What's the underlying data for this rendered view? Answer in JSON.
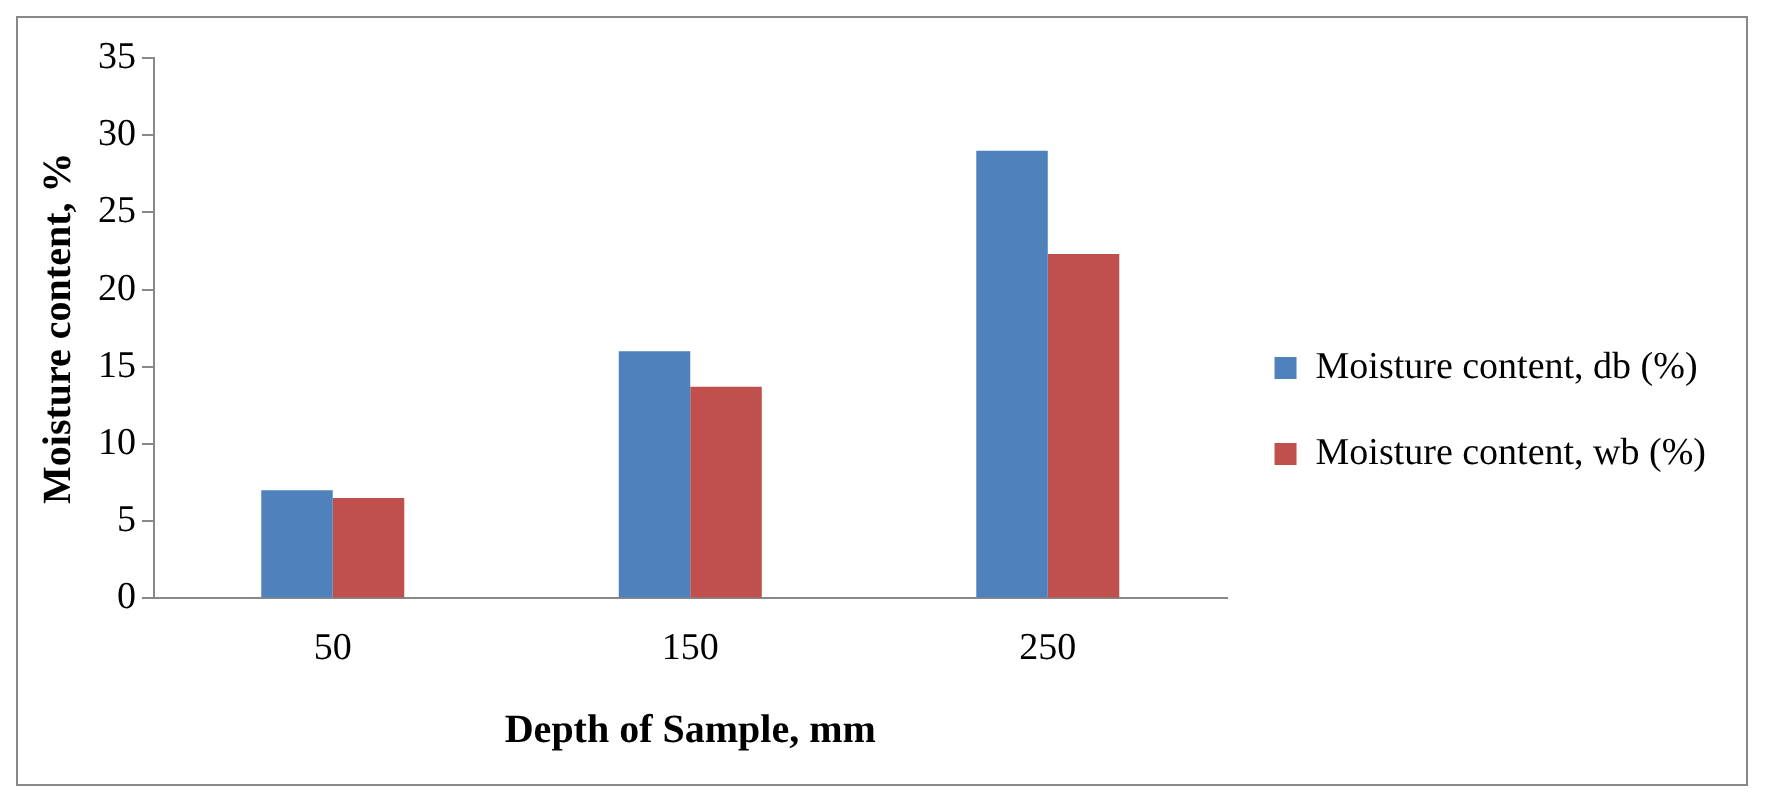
{
  "chart_data": {
    "type": "bar",
    "xlabel": "Depth of Sample, mm",
    "ylabel": "Moisture content, %",
    "categories": [
      "50",
      "150",
      "250"
    ],
    "series": [
      {
        "name": "Moisture content, db (%)",
        "color": "#4f81bd",
        "values": [
          7.0,
          16.0,
          29.0
        ]
      },
      {
        "name": "Moisture content, wb (%)",
        "color": "#c0504d",
        "values": [
          6.5,
          13.7,
          22.3
        ]
      }
    ],
    "ylim": [
      0,
      35
    ],
    "yticks": [
      0,
      5,
      10,
      15,
      20,
      25,
      30,
      35
    ],
    "grid": false,
    "legend": "right"
  }
}
